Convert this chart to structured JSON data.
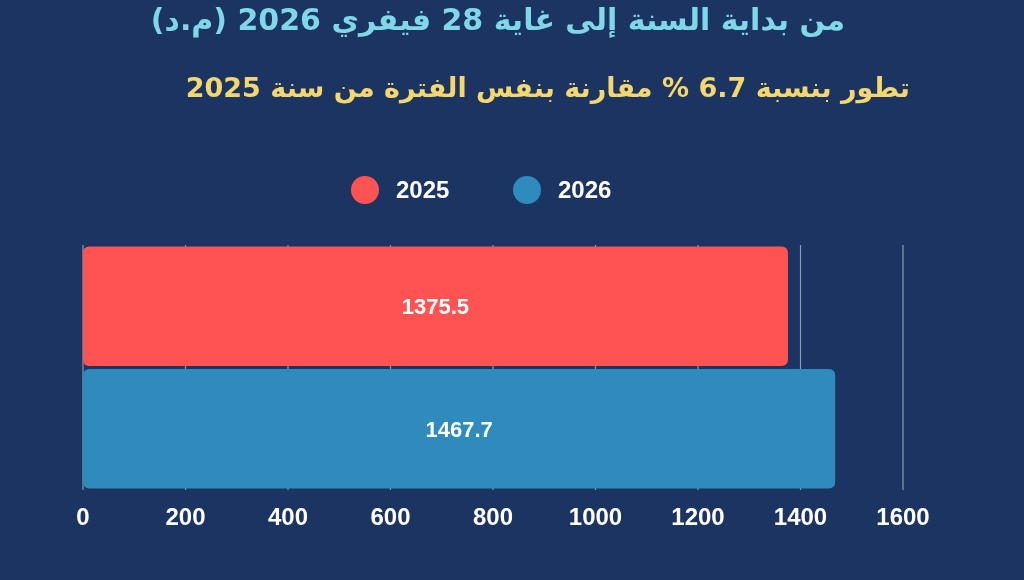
{
  "chart_data": {
    "type": "bar",
    "orientation": "horizontal",
    "title": "من بداية السنة إلى غاية 28 فيفري 2026 (م.د)",
    "subtitle": "تطور بنسبة 6.7 % مقارنة بنفس الفترة من سنة 2025",
    "categories": [
      null
    ],
    "series": [
      {
        "name": "2025",
        "color": "#fd5353",
        "values": [
          1375.5
        ]
      },
      {
        "name": "2026",
        "color": "#2e8bbb",
        "values": [
          1467.7
        ]
      }
    ],
    "xlim": [
      0,
      1600
    ],
    "xticks": [
      0,
      200,
      400,
      600,
      800,
      1000,
      1200,
      1400,
      1600
    ],
    "grid": "x",
    "legend": "top",
    "data_labels": true
  }
}
